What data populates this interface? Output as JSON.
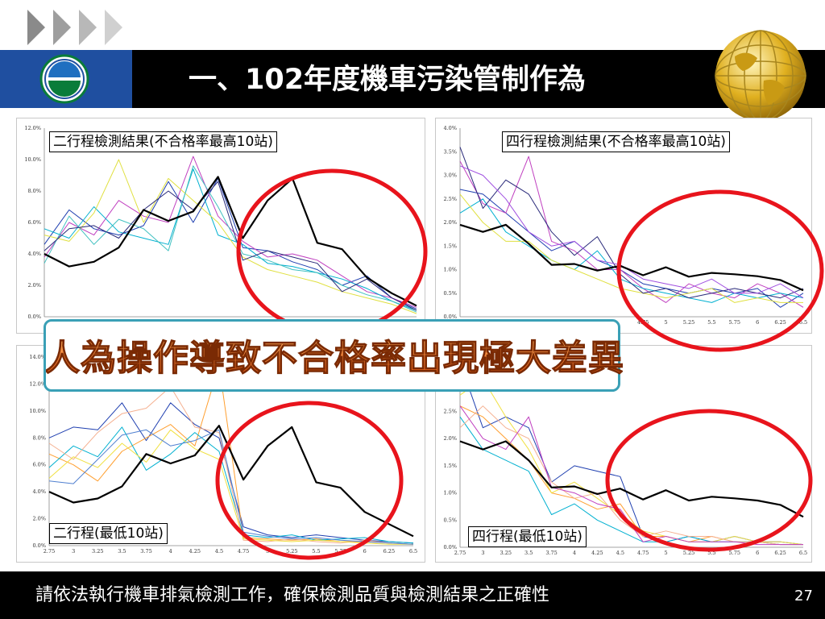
{
  "slide": {
    "title": "一、102年度機車污染管制作為",
    "footer_text": "請依法執行機車排氣檢測工作，確保檢測品質與檢測結果之正確性",
    "page_number": "27",
    "banner_text": "人為操作導致不合格率出現極大差異"
  },
  "colors": {
    "title_bar": "#000000",
    "logo_box": "#1f4fa0",
    "highlight_circle": "#e8141c",
    "banner_border": "#3aa0b6",
    "banner_text": "#e86a10",
    "average_line": "#000000"
  },
  "icons": [
    "play-chevrons-icon",
    "epa-logo-icon",
    "gold-globe-icon"
  ],
  "chart_data": [
    {
      "type": "line",
      "panel_label": "二行程檢測結果(不合格率最高10站)",
      "title": "",
      "xlabel": "",
      "ylabel": "",
      "ylim": [
        0,
        12
      ],
      "y_tick_labels": [
        "0.0%",
        "2.0%",
        "4.0%",
        "6.0%",
        "8.0%",
        "10.0%",
        "12.0%"
      ],
      "x": [
        2.75,
        3,
        3.25,
        3.5,
        3.75,
        4,
        4.25,
        4.5,
        4.75,
        5,
        5.25,
        5.5,
        5.75,
        6,
        6.25,
        6.5
      ],
      "x_tick_labels": [],
      "highlight_circle": "around x 4.75–6.5",
      "series": [
        {
          "color": "#000000",
          "thick": true,
          "values": [
            4.0,
            3.2,
            3.5,
            4.4,
            6.8,
            6.1,
            6.7,
            8.9,
            5.0,
            7.4,
            8.8,
            4.7,
            4.3,
            2.5,
            1.5,
            0.7
          ]
        },
        {
          "color": "#1f3fb0",
          "values": [
            4.6,
            6.8,
            5.6,
            5.2,
            5.8,
            8.6,
            6.0,
            8.8,
            4.4,
            4.2,
            3.5,
            3.0,
            2.0,
            2.6,
            1.2,
            0.5
          ]
        },
        {
          "color": "#c040c0",
          "values": [
            3.8,
            6.0,
            5.2,
            7.4,
            6.4,
            6.0,
            10.2,
            6.4,
            4.8,
            3.8,
            4.0,
            3.6,
            2.6,
            1.6,
            1.2,
            0.6
          ]
        },
        {
          "color": "#00b0d0",
          "values": [
            5.6,
            5.0,
            7.0,
            5.4,
            5.0,
            4.6,
            9.4,
            5.2,
            4.6,
            3.4,
            3.2,
            2.8,
            2.4,
            1.8,
            1.0,
            0.4
          ]
        },
        {
          "color": "#e0e040",
          "values": [
            5.2,
            4.8,
            6.6,
            10.0,
            6.0,
            8.8,
            7.4,
            6.0,
            3.8,
            3.0,
            2.6,
            2.2,
            1.6,
            1.2,
            0.8,
            0.2
          ]
        },
        {
          "color": "#40c0c0",
          "values": [
            3.4,
            6.4,
            4.6,
            6.2,
            5.6,
            4.2,
            9.6,
            7.0,
            4.0,
            3.6,
            3.0,
            2.8,
            2.0,
            1.4,
            1.0,
            0.3
          ]
        },
        {
          "color": "#2a2a7a",
          "values": [
            4.2,
            5.6,
            5.8,
            5.0,
            6.8,
            8.0,
            6.8,
            8.6,
            3.6,
            4.2,
            3.8,
            3.4,
            1.6,
            2.4,
            1.2,
            0.4
          ]
        }
      ]
    },
    {
      "type": "line",
      "panel_label": "四行程檢測結果(不合格率最高10站)",
      "title": "",
      "xlabel": "",
      "ylabel": "",
      "ylim": [
        0,
        4
      ],
      "y_tick_labels": [
        "0.0%",
        "0.5%",
        "1.0%",
        "1.5%",
        "2.0%",
        "2.5%",
        "3.0%",
        "3.5%",
        "4.0%"
      ],
      "x": [
        2.75,
        3,
        3.25,
        3.5,
        3.75,
        4,
        4.25,
        4.5,
        4.75,
        5,
        5.25,
        5.5,
        5.75,
        6,
        6.25,
        6.5
      ],
      "x_tick_labels": [
        "4.75",
        "5",
        "5.25",
        "5.5",
        "5.75",
        "6",
        "6.25",
        "6.5"
      ],
      "highlight_circle": "around x 4.75–6.5",
      "series": [
        {
          "color": "#000000",
          "thick": true,
          "values": [
            1.95,
            1.8,
            1.95,
            1.55,
            1.1,
            1.12,
            0.98,
            1.08,
            0.88,
            1.05,
            0.85,
            0.93,
            0.9,
            0.86,
            0.78,
            0.56
          ]
        },
        {
          "color": "#1f3fb0",
          "values": [
            2.7,
            2.6,
            2.2,
            1.8,
            1.4,
            1.6,
            1.2,
            1.0,
            0.7,
            0.6,
            0.5,
            0.6,
            0.5,
            0.6,
            0.2,
            0.5
          ]
        },
        {
          "color": "#c040c0",
          "values": [
            3.3,
            2.4,
            2.2,
            3.4,
            1.6,
            1.4,
            1.0,
            1.0,
            0.6,
            0.3,
            0.7,
            0.5,
            0.4,
            0.7,
            0.5,
            0.2
          ]
        },
        {
          "color": "#00b0d0",
          "values": [
            2.2,
            2.5,
            1.8,
            1.5,
            1.2,
            1.0,
            1.4,
            0.8,
            0.6,
            0.5,
            0.4,
            0.3,
            0.5,
            0.4,
            0.5,
            0.4
          ]
        },
        {
          "color": "#e0e040",
          "values": [
            2.6,
            2.0,
            1.6,
            1.6,
            1.2,
            1.0,
            0.8,
            0.6,
            0.5,
            0.4,
            0.5,
            0.6,
            0.3,
            0.4,
            0.3,
            0.3
          ]
        },
        {
          "color": "#2a2a7a",
          "values": [
            3.6,
            2.3,
            2.9,
            2.6,
            1.8,
            1.3,
            1.7,
            0.9,
            0.5,
            0.6,
            0.4,
            0.5,
            0.6,
            0.5,
            0.4,
            0.6
          ]
        },
        {
          "color": "#a050e0",
          "values": [
            3.2,
            3.0,
            2.5,
            1.8,
            1.5,
            1.6,
            1.2,
            1.1,
            0.8,
            0.7,
            0.6,
            0.8,
            0.5,
            0.5,
            0.7,
            0.4
          ]
        }
      ]
    },
    {
      "type": "line",
      "panel_label": "二行程(最低10站)",
      "title": "",
      "xlabel": "",
      "ylabel": "",
      "ylim": [
        0,
        14
      ],
      "y_tick_labels": [
        "0.0%",
        "2.0%",
        "4.0%",
        "6.0%",
        "8.0%",
        "10.0%",
        "12.0%",
        "14.0%"
      ],
      "x": [
        2.75,
        3,
        3.25,
        3.5,
        3.75,
        4,
        4.25,
        4.5,
        4.75,
        5,
        5.25,
        5.5,
        5.75,
        6,
        6.25,
        6.5
      ],
      "x_tick_labels": [
        "2.75",
        "3",
        "3.25",
        "3.5",
        "3.75",
        "4",
        "4.25",
        "4.5",
        "4.75",
        "5",
        "5.25",
        "5.5",
        "5.75",
        "6",
        "6.25",
        "6.5"
      ],
      "highlight_circle": "around x 4.5–6.5",
      "series": [
        {
          "color": "#000000",
          "thick": true,
          "values": [
            4.0,
            3.2,
            3.5,
            4.4,
            6.8,
            6.1,
            6.7,
            8.9,
            4.9,
            7.4,
            8.8,
            4.7,
            4.3,
            2.5,
            1.6,
            0.7
          ]
        },
        {
          "color": "#1f3fb0",
          "values": [
            8.0,
            8.8,
            8.6,
            10.6,
            7.8,
            10.6,
            9.0,
            8.0,
            1.4,
            0.8,
            0.6,
            0.8,
            0.6,
            0.4,
            0.3,
            0.2
          ]
        },
        {
          "color": "#ff9f30",
          "values": [
            6.8,
            6.0,
            4.8,
            7.0,
            8.0,
            9.0,
            7.4,
            13.4,
            0.6,
            0.5,
            0.4,
            0.5,
            0.3,
            0.3,
            0.2,
            0.1
          ]
        },
        {
          "color": "#00b0d0",
          "values": [
            5.8,
            7.4,
            6.6,
            8.8,
            5.6,
            6.8,
            8.4,
            7.0,
            0.8,
            0.6,
            0.8,
            0.4,
            0.5,
            0.6,
            0.3,
            0.2
          ]
        },
        {
          "color": "#f5b090",
          "values": [
            7.6,
            6.4,
            8.4,
            9.8,
            10.2,
            11.8,
            8.8,
            8.4,
            0.4,
            0.3,
            0.5,
            0.3,
            0.2,
            0.4,
            0.2,
            0.1
          ]
        },
        {
          "color": "#f0e040",
          "values": [
            5.0,
            6.6,
            5.8,
            7.6,
            6.2,
            8.6,
            7.2,
            6.4,
            0.5,
            0.4,
            0.3,
            0.4,
            0.3,
            0.2,
            0.1,
            0.1
          ]
        },
        {
          "color": "#5080d0",
          "values": [
            4.8,
            4.6,
            6.4,
            8.2,
            8.6,
            7.4,
            7.8,
            8.6,
            1.0,
            0.7,
            0.5,
            0.6,
            0.4,
            0.3,
            0.2,
            0.1
          ]
        }
      ]
    },
    {
      "type": "line",
      "panel_label": "四行程(最低10站)",
      "title": "",
      "xlabel": "",
      "ylabel": "",
      "ylim": [
        0,
        3.5
      ],
      "y_tick_labels": [
        "0.0%",
        "0.5%",
        "1.0%",
        "1.5%",
        "2.0%",
        "2.5%",
        "3.0%"
      ],
      "x": [
        2.75,
        3,
        3.25,
        3.5,
        3.75,
        4,
        4.25,
        4.5,
        4.75,
        5,
        5.25,
        5.5,
        5.75,
        6,
        6.25,
        6.5
      ],
      "x_tick_labels": [
        "2.75",
        "3",
        "3.25",
        "3.5",
        "3.75",
        "4",
        "4.25",
        "4.5",
        "4.75",
        "5",
        "5.25",
        "5.5",
        "5.75",
        "6",
        "6.25",
        "6.5"
      ],
      "highlight_circle": "around x 4.75–6.5",
      "series": [
        {
          "color": "#000000",
          "thick": true,
          "values": [
            1.95,
            1.8,
            1.95,
            1.6,
            1.1,
            1.12,
            0.98,
            1.08,
            0.88,
            1.05,
            0.86,
            0.93,
            0.9,
            0.86,
            0.78,
            0.56
          ]
        },
        {
          "color": "#1f3fb0",
          "values": [
            3.4,
            2.2,
            2.4,
            2.2,
            1.2,
            1.5,
            1.4,
            1.3,
            0.2,
            0.1,
            0.2,
            0.1,
            0.2,
            0.1,
            0.1,
            0.05
          ]
        },
        {
          "color": "#ff9f30",
          "values": [
            2.6,
            2.4,
            2.0,
            1.6,
            1.0,
            0.9,
            0.7,
            0.8,
            0.2,
            0.2,
            0.1,
            0.2,
            0.1,
            0.1,
            0.05,
            0.05
          ]
        },
        {
          "color": "#00b0d0",
          "values": [
            2.4,
            1.8,
            1.6,
            1.4,
            0.6,
            0.8,
            0.5,
            0.3,
            0.1,
            0.1,
            0.2,
            0.1,
            0.1,
            0.1,
            0.05,
            0.05
          ]
        },
        {
          "color": "#f0e040",
          "values": [
            2.8,
            3.1,
            2.4,
            1.8,
            1.0,
            1.2,
            0.9,
            0.6,
            0.3,
            0.2,
            0.1,
            0.1,
            0.2,
            0.1,
            0.1,
            0.05
          ]
        },
        {
          "color": "#f5b090",
          "values": [
            2.2,
            2.6,
            2.2,
            2.0,
            1.2,
            0.9,
            1.0,
            0.5,
            0.2,
            0.3,
            0.2,
            0.2,
            0.1,
            0.1,
            0.05,
            0.05
          ]
        },
        {
          "color": "#c040c0",
          "values": [
            2.6,
            2.0,
            1.8,
            2.4,
            1.1,
            1.0,
            0.8,
            0.7,
            0.1,
            0.2,
            0.1,
            0.1,
            0.1,
            0.05,
            0.05,
            0.05
          ]
        }
      ]
    }
  ]
}
